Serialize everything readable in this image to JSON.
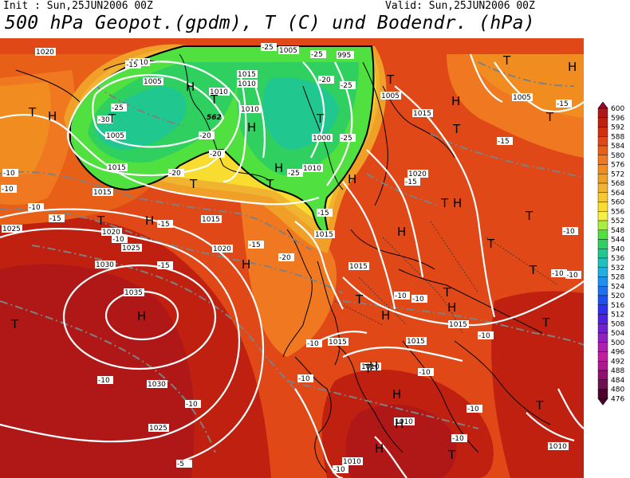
{
  "header": {
    "init": "Init : Sun,25JUN2006 00Z",
    "valid": "Valid: Sun,25JUN2006 00Z",
    "title": "500 hPa Geopot.(gpdm), T (C) und Bodendr. (hPa)"
  },
  "colorbar": {
    "levels": [
      "600",
      "596",
      "592",
      "588",
      "584",
      "580",
      "576",
      "572",
      "568",
      "564",
      "560",
      "556",
      "552",
      "548",
      "544",
      "540",
      "536",
      "532",
      "528",
      "524",
      "520",
      "516",
      "512",
      "508",
      "504",
      "500",
      "496",
      "492",
      "488",
      "484",
      "480",
      "476"
    ],
    "colors": [
      "#a00030",
      "#b01818",
      "#c02010",
      "#d03010",
      "#e04818",
      "#e86018",
      "#f07820",
      "#f08c20",
      "#f0a028",
      "#f0b430",
      "#f8c830",
      "#f8dc30",
      "#f8f040",
      "#a8f040",
      "#50e040",
      "#30d060",
      "#20c890",
      "#20c0c0",
      "#20b0e0",
      "#2090f0",
      "#2070f0",
      "#2050f0",
      "#3030f0",
      "#5020e0",
      "#7020d0",
      "#9020c0",
      "#b020b0",
      "#c020a0",
      "#b01890",
      "#901070",
      "#701050",
      "#500030"
    ]
  },
  "map": {
    "pressure_labels": [
      "1020",
      "1010",
      "1005",
      "1005",
      "1010",
      "1005",
      "995",
      "1015",
      "1010",
      "1015",
      "1010",
      "1020",
      "1000",
      "1005",
      "1015",
      "1010",
      "1015",
      "1020",
      "1015",
      "1025",
      "1020",
      "1025",
      "1030",
      "1035",
      "1015",
      "1015",
      "1015",
      "1015",
      "1010",
      "1030",
      "1025",
      "1010",
      "1010",
      "1010",
      "1005",
      "1015"
    ],
    "temp_labels": [
      "-25",
      "-25",
      "-25",
      "-30",
      "-20",
      "-20",
      "-25",
      "-20",
      "-20",
      "-25",
      "-25",
      "-15",
      "-15",
      "-10",
      "-10",
      "-15",
      "-15",
      "-20",
      "-10",
      "-15",
      "-10",
      "-15",
      "-10",
      "-10",
      "-10",
      "-15",
      "-10",
      "-10",
      "-10",
      "-10",
      "-10",
      "-10",
      "-5",
      "-10",
      "-10",
      "-15",
      "-15",
      "-10",
      "-10",
      "-10"
    ],
    "height_label": "562",
    "high_markers": [
      "H",
      "H",
      "H",
      "H",
      "H",
      "H",
      "H",
      "H",
      "H",
      "H",
      "H",
      "H",
      "H",
      "H",
      "H",
      "H",
      "H",
      "H"
    ],
    "low_markers": [
      "T",
      "T",
      "T",
      "T",
      "T",
      "T",
      "T",
      "T",
      "T",
      "T",
      "T",
      "T",
      "T",
      "T",
      "T",
      "T",
      "T",
      "T",
      "T",
      "T",
      "T",
      "T"
    ]
  }
}
